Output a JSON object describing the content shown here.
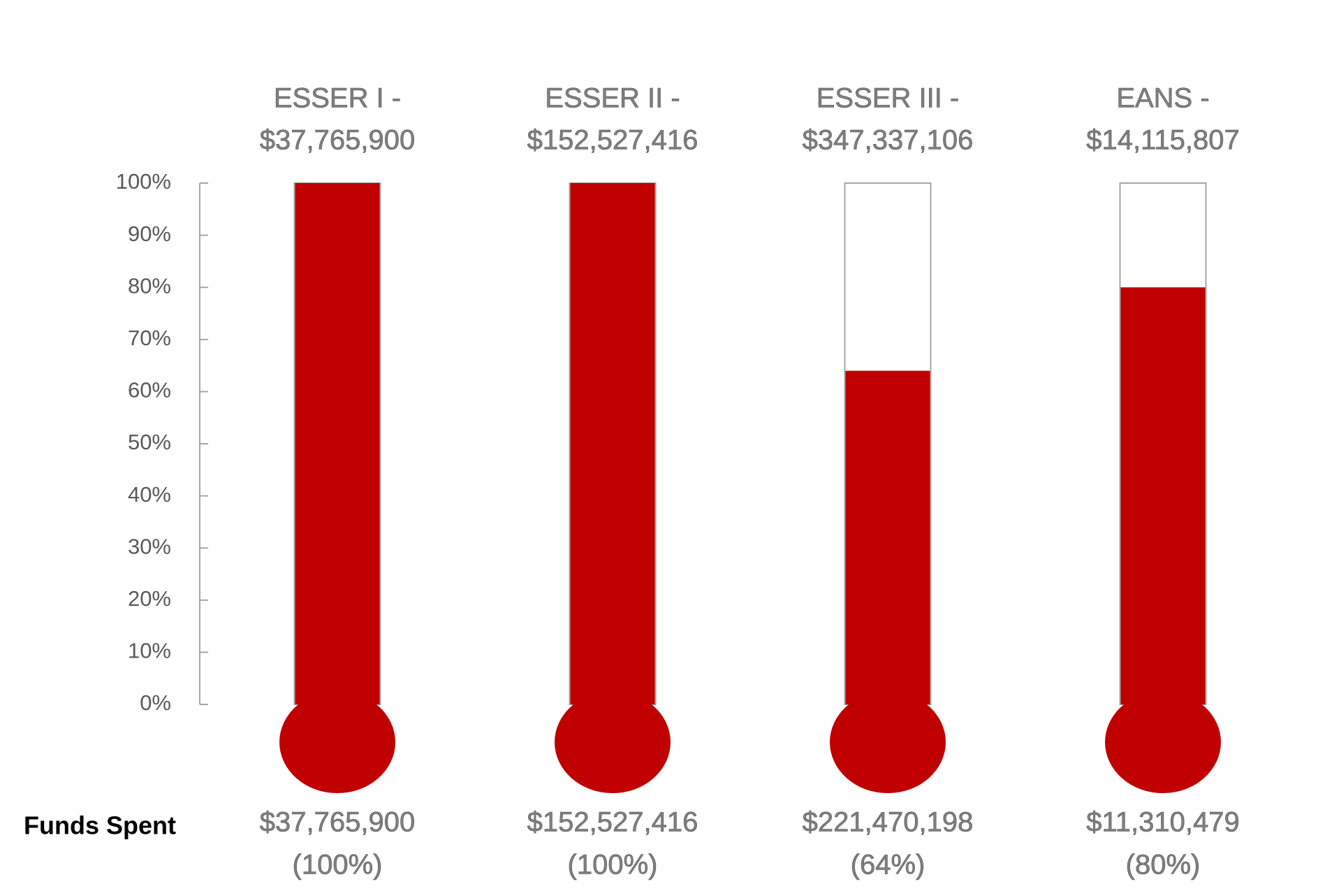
{
  "chart_data": {
    "type": "thermometer",
    "categories": [
      "ESSER I -",
      "ESSER II -",
      "ESSER III -",
      "EANS -"
    ],
    "budgets": [
      "$37,765,900",
      "$152,527,416",
      "$347,337,106",
      "$14,115,807"
    ],
    "values": [
      100,
      100,
      64,
      80
    ],
    "value_labels": [
      "(100%)",
      "(100%)",
      "(64%)",
      "(80%)"
    ],
    "spent_labels": [
      "$37,765,900",
      "$152,527,416",
      "$221,470,198",
      "$11,310,479"
    ],
    "row_label": "Funds Spent",
    "color": "#c00000",
    "ylim": [
      0,
      100
    ],
    "yticks": [
      {
        "value": 0,
        "label": "0%"
      },
      {
        "value": 10,
        "label": "10%"
      },
      {
        "value": 20,
        "label": "20%"
      },
      {
        "value": 30,
        "label": "30%"
      },
      {
        "value": 40,
        "label": "40%"
      },
      {
        "value": 50,
        "label": "50%"
      },
      {
        "value": 60,
        "label": "60%"
      },
      {
        "value": 70,
        "label": "70%"
      },
      {
        "value": 80,
        "label": "80%"
      },
      {
        "value": 90,
        "label": "90%"
      },
      {
        "value": 100,
        "label": "100%"
      }
    ]
  }
}
